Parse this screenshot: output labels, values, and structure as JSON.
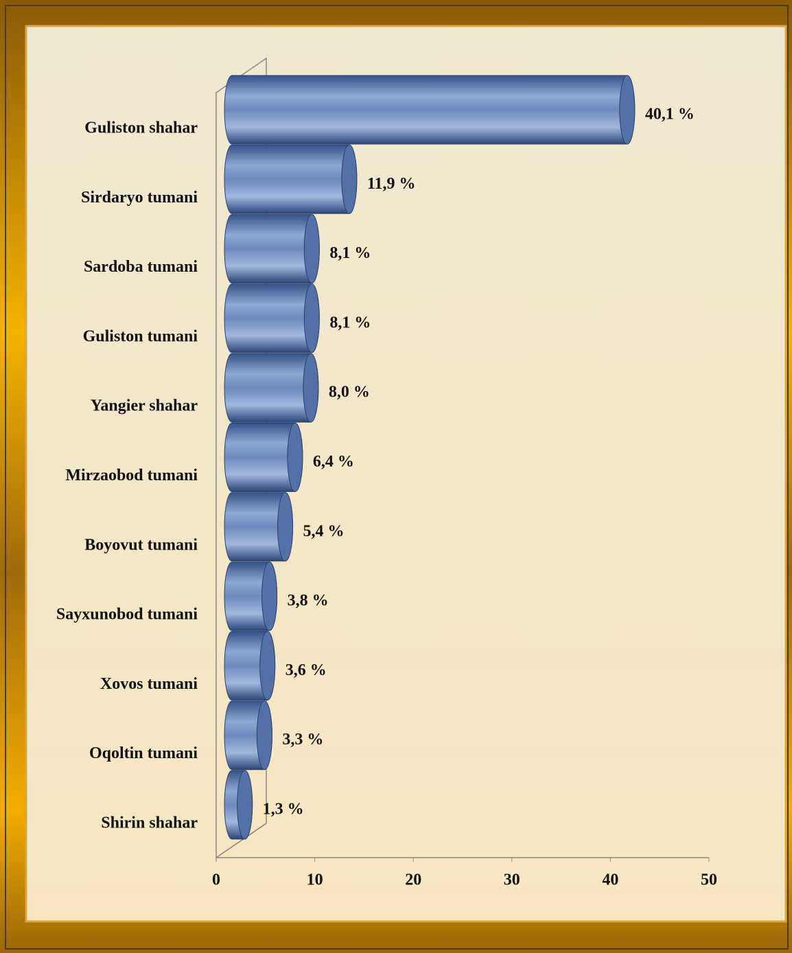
{
  "chart_data": {
    "type": "bar",
    "orientation": "horizontal",
    "categories": [
      "Guliston shahar",
      "Sirdaryo tumani",
      "Sardoba tumani",
      "Guliston tumani",
      "Yangier shahar",
      "Mirzaobod tumani",
      "Boyovut tumani",
      "Sayxunobod tumani",
      "Xovos tumani",
      "Oqoltin tumani",
      "Shirin shahar"
    ],
    "values": [
      40.1,
      11.9,
      8.1,
      8.1,
      8.0,
      6.4,
      5.4,
      3.8,
      3.6,
      3.3,
      1.3
    ],
    "value_labels": [
      "40,1 %",
      "11,9 %",
      "8,1 %",
      "8,1 %",
      "8,0 %",
      "6,4 %",
      "5,4 %",
      "3,8 %",
      "3,6 %",
      "3,3 %",
      "1,3 %"
    ],
    "color": "#5470a8",
    "xlim": [
      0,
      50
    ],
    "xticks": [
      0,
      10,
      20,
      30,
      40,
      50
    ],
    "grid": false
  }
}
